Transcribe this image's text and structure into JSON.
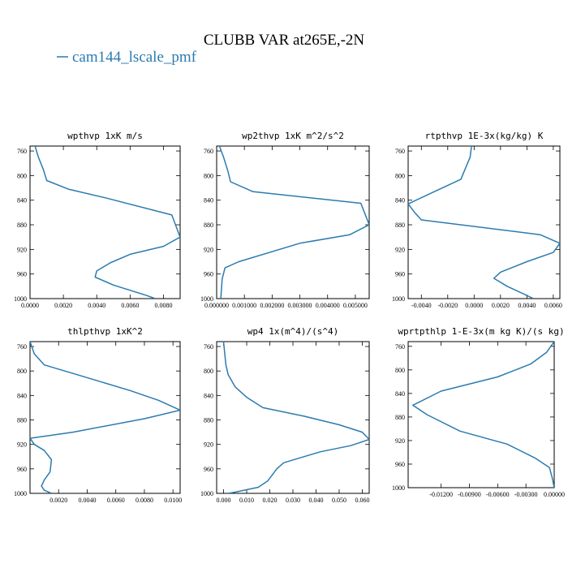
{
  "figure": {
    "title": "CLUBB VAR at265E,-2N",
    "legend_label": "cam144_lscale_pmf",
    "series_color": "#2b7bb0"
  },
  "chart_data": [
    {
      "type": "line",
      "title": "wpthvp  1xK m/s",
      "series": [
        {
          "name": "cam144_lscale_pmf",
          "x": [
            0.0003,
            0.0005,
            0.0008,
            0.001,
            0.0023,
            0.0045,
            0.0085,
            0.009,
            0.008,
            0.006,
            0.0048,
            0.004,
            0.0039,
            0.005,
            0.007,
            0.0075
          ],
          "y": [
            752,
            770,
            790,
            808,
            822,
            836,
            864,
            900,
            915,
            928,
            942,
            955,
            965,
            978,
            995,
            1000
          ]
        }
      ],
      "xlim": [
        0,
        0.009
      ],
      "ylim": [
        1000,
        752
      ],
      "xticks": [
        0.0,
        0.002,
        0.004,
        0.006,
        0.008
      ],
      "xticklabels": [
        "0.0000",
        "0.0020",
        "0.0040",
        "0.0060",
        "0.0080"
      ],
      "yticks": [
        760,
        800,
        840,
        880,
        920,
        960,
        1000
      ],
      "yticklabels": [
        "760",
        "800",
        "840",
        "880",
        "920",
        "960",
        "1000"
      ]
    },
    {
      "type": "line",
      "title": "wp2thvp  1xK m^2/s^2",
      "series": [
        {
          "name": "cam144_lscale_pmf",
          "x": [
            0.0001,
            0.00025,
            0.0004,
            0.0005,
            0.0013,
            0.0052,
            0.0055,
            0.0048,
            0.003,
            0.0008,
            0.0003,
            0.0002,
            0.00015
          ],
          "y": [
            752,
            770,
            792,
            810,
            826,
            845,
            880,
            896,
            910,
            940,
            950,
            968,
            1000
          ]
        }
      ],
      "xlim": [
        0,
        0.0055
      ],
      "ylim": [
        1000,
        752
      ],
      "xticks": [
        0,
        0.001,
        0.002,
        0.003,
        0.004,
        0.005
      ],
      "xticklabels": [
        "0.000000",
        "0.001000",
        "0.002000",
        "0.003000",
        "0.004000",
        "0.005000"
      ],
      "yticks": [
        760,
        800,
        840,
        880,
        920,
        960,
        1000
      ],
      "yticklabels": [
        "760",
        "800",
        "840",
        "880",
        "920",
        "960",
        "1000"
      ]
    },
    {
      "type": "line",
      "title": "rtpthvp  1E-3x(kg/kg) K",
      "series": [
        {
          "name": "rtpthvp",
          "x": [
            -0.0002,
            -0.0003,
            -0.001,
            -0.003,
            -0.005,
            -0.0045,
            -0.004,
            0.005,
            0.0065,
            0.006,
            0.004,
            0.002,
            0.0015,
            0.0025,
            0.0045
          ],
          "y": [
            752,
            770,
            806,
            826,
            846,
            860,
            872,
            896,
            910,
            925,
            940,
            957,
            967,
            980,
            1000
          ]
        }
      ],
      "xlim": [
        -0.005,
        0.0065
      ],
      "ylim": [
        1000,
        752
      ],
      "xticks": [
        -0.004,
        -0.002,
        0,
        0.002,
        0.004,
        0.006
      ],
      "xticklabels": [
        "-0.0040",
        "-0.0020",
        "0.0000",
        "0.0020",
        "0.0040",
        "0.0060"
      ],
      "yticks": [
        760,
        800,
        840,
        880,
        920,
        960,
        1000
      ],
      "yticklabels": [
        "760",
        "800",
        "840",
        "880",
        "920",
        "960",
        "1000"
      ]
    },
    {
      "type": "line",
      "title": "thlpthvp  1xK^2",
      "series": [
        {
          "name": "thlpthvp",
          "x": [
            0.0,
            0.0003,
            0.001,
            0.003,
            0.007,
            0.009,
            0.0105,
            0.008,
            0.003,
            0.0,
            0.0003,
            0.001,
            0.0015,
            0.0014,
            0.001,
            0.0008,
            0.001,
            0.0015
          ],
          "y": [
            752,
            772,
            790,
            804,
            832,
            848,
            864,
            878,
            900,
            910,
            920,
            930,
            945,
            965,
            978,
            988,
            995,
            1000
          ]
        }
      ],
      "xlim": [
        0,
        0.0105
      ],
      "ylim": [
        1000,
        752
      ],
      "xticks": [
        0.002,
        0.004,
        0.006,
        0.008,
        0.01
      ],
      "xticklabels": [
        "0.0020",
        "0.0040",
        "0.0060",
        "0.0080",
        "0.0100"
      ],
      "yticks": [
        760,
        800,
        840,
        880,
        920,
        960,
        1000
      ],
      "yticklabels": [
        "760",
        "800",
        "840",
        "880",
        "920",
        "960",
        "1000"
      ]
    },
    {
      "type": "line",
      "title": "wp4  1x(m^4)/(s^4)",
      "series": [
        {
          "name": "wp4",
          "x": [
            0.0,
            0.0005,
            0.001,
            0.002,
            0.005,
            0.01,
            0.017,
            0.035,
            0.05,
            0.06,
            0.063,
            0.055,
            0.042,
            0.033,
            0.026,
            0.023,
            0.021,
            0.019,
            0.015,
            0.005,
            0.002
          ],
          "y": [
            752,
            772,
            790,
            806,
            826,
            843,
            860,
            874,
            888,
            900,
            912,
            922,
            932,
            942,
            950,
            960,
            970,
            980,
            990,
            998,
            1000
          ]
        }
      ],
      "xlim": [
        -0.003,
        0.063
      ],
      "ylim": [
        1000,
        752
      ],
      "xticks": [
        0,
        0.01,
        0.02,
        0.03,
        0.04,
        0.05,
        0.06
      ],
      "xticklabels": [
        "0.000",
        "0.010",
        "0.020",
        "0.030",
        "0.040",
        "0.050",
        "0.060"
      ],
      "yticks": [
        760,
        800,
        840,
        880,
        920,
        960,
        1000
      ],
      "yticklabels": [
        "760",
        "800",
        "840",
        "880",
        "920",
        "960",
        "1000"
      ]
    },
    {
      "type": "line",
      "title": "wprtpthlp  1-E-3x(m kg K)/(s kg)",
      "series": [
        {
          "name": "wprtpthlp",
          "x": [
            0.0,
            -0.0008,
            -0.0025,
            -0.006,
            -0.012,
            -0.015,
            -0.0135,
            -0.01,
            -0.005,
            -0.002,
            -0.0005,
            -0.0002,
            0.0
          ],
          "y": [
            752,
            770,
            790,
            812,
            836,
            860,
            876,
            904,
            926,
            950,
            966,
            984,
            1000
          ]
        }
      ],
      "xlim": [
        -0.0155,
        0.0
      ],
      "ylim": [
        1000,
        752
      ],
      "xticks": [
        -0.012,
        -0.009,
        -0.006,
        -0.003,
        0.0
      ],
      "xticklabels": [
        "-0.01200",
        "-0.00900",
        "-0.00600",
        "-0.00300",
        "0.00000"
      ],
      "yticks": [
        760,
        800,
        840,
        880,
        920,
        960,
        1000
      ],
      "yticklabels": [
        "760",
        "800",
        "840",
        "880",
        "920",
        "960",
        "1000"
      ]
    }
  ]
}
